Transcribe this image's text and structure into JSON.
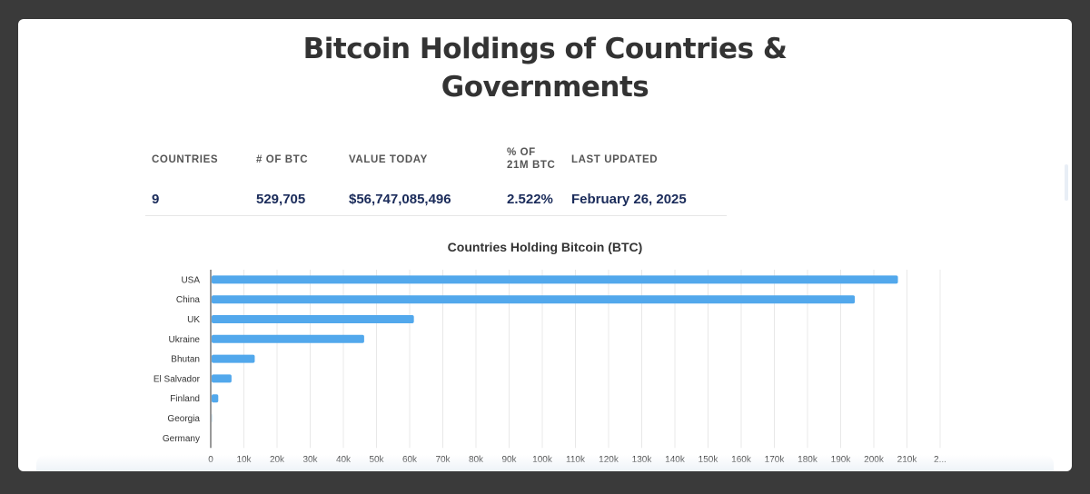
{
  "page": {
    "title_line1": "Bitcoin Holdings of Countries &",
    "title_line2": "Governments"
  },
  "stats": {
    "columns": [
      {
        "header": "COUNTRIES",
        "value": "9"
      },
      {
        "header": "# OF BTC",
        "value": "529,705"
      },
      {
        "header": "VALUE TODAY",
        "value": "$56,747,085,496"
      },
      {
        "header_line1": "% OF",
        "header_line2": "21M BTC",
        "value": "2.522%"
      },
      {
        "header": "LAST UPDATED",
        "value": "February 26, 2025"
      }
    ]
  },
  "colors": {
    "bar": "#52a8ec",
    "grid": "#e8e8e8",
    "axis": "#333333",
    "value_text": "#1a2b5a"
  },
  "chart_data": {
    "type": "bar",
    "orientation": "horizontal",
    "title": "Countries Holding Bitcoin (BTC)",
    "categories": [
      "USA",
      "China",
      "UK",
      "Ukraine",
      "Bhutan",
      "El Salvador",
      "Finland",
      "Georgia",
      "Germany"
    ],
    "values": [
      207000,
      194000,
      61000,
      46000,
      13000,
      6000,
      2000,
      66,
      0
    ],
    "x_ticks": [
      "0",
      "10k",
      "20k",
      "30k",
      "40k",
      "50k",
      "60k",
      "70k",
      "80k",
      "90k",
      "100k",
      "110k",
      "120k",
      "130k",
      "140k",
      "150k",
      "160k",
      "170k",
      "180k",
      "190k",
      "200k",
      "210k",
      "2..."
    ],
    "xlim": [
      0,
      220000
    ],
    "grid": true
  }
}
